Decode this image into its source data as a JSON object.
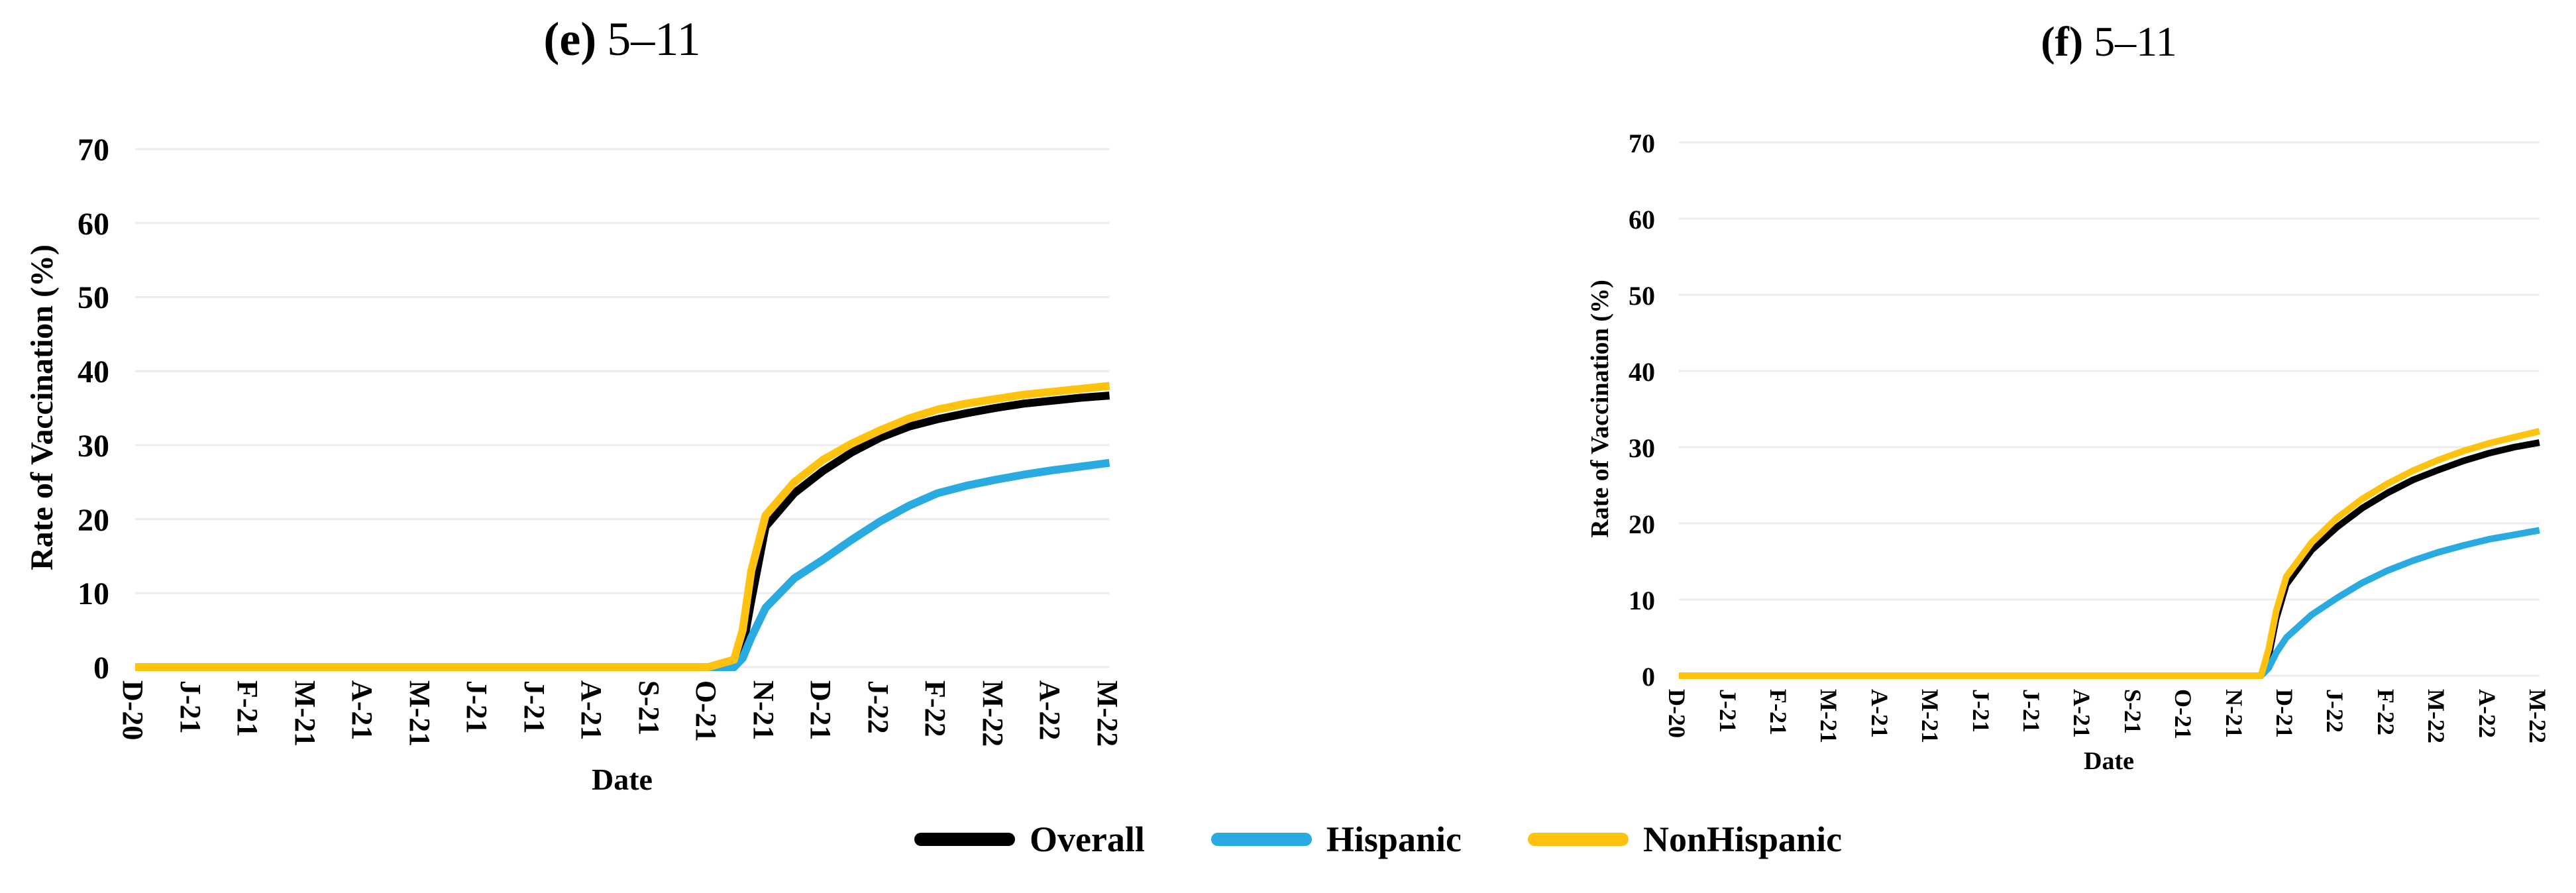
{
  "figure": {
    "background": "#FFFFFF",
    "gridline_color": "#ECECEC"
  },
  "legend": {
    "position": "bottom-center",
    "items": [
      {
        "label": "Overall",
        "color": "#000000"
      },
      {
        "label": "Hispanic",
        "color": "#29ABE2"
      },
      {
        "label": "NonHispanic",
        "color": "#FFC20E"
      }
    ]
  },
  "chart_data": [
    {
      "panel": "e",
      "type": "line",
      "title_prefix": "(e)",
      "title_main": "5–11",
      "xlabel": "Date",
      "ylabel": "Rate of Vaccination (%)",
      "ylim": [
        0,
        70
      ],
      "yticks": [
        0,
        10,
        20,
        30,
        40,
        50,
        60,
        70
      ],
      "grid": "horizontal",
      "legend_position": "shared-bottom",
      "categories": [
        "D-20",
        "J-21",
        "F-21",
        "M-21",
        "A-21",
        "M-21",
        "J-21",
        "J-21",
        "A-21",
        "S-21",
        "O-21",
        "N-21",
        "D-21",
        "J-22",
        "F-22",
        "M-22",
        "A-22",
        "M-22"
      ],
      "x_months": [
        0,
        1,
        2,
        3,
        4,
        5,
        6,
        7,
        8,
        9,
        10,
        10.45,
        10.6,
        10.75,
        11,
        11.5,
        12,
        12.5,
        13,
        13.5,
        14,
        14.5,
        15,
        15.5,
        16,
        16.5,
        17
      ],
      "series": [
        {
          "name": "Overall",
          "values": [
            0,
            0,
            0,
            0,
            0,
            0,
            0,
            0,
            0,
            0,
            0,
            0,
            2.5,
            9,
            19,
            23.5,
            26.5,
            29,
            31,
            32.5,
            33.5,
            34.3,
            35,
            35.6,
            36,
            36.4,
            36.7
          ]
        },
        {
          "name": "Hispanic",
          "values": [
            0,
            0,
            0,
            0,
            0,
            0,
            0,
            0,
            0,
            0,
            0,
            0,
            1.2,
            4,
            8,
            12,
            14.5,
            17.2,
            19.7,
            21.8,
            23.5,
            24.5,
            25.3,
            26,
            26.6,
            27.1,
            27.6
          ]
        },
        {
          "name": "NonHispanic",
          "values": [
            0,
            0,
            0,
            0,
            0,
            0,
            0,
            0,
            0,
            0,
            0,
            1,
            5,
            13,
            20.5,
            25,
            28,
            30.2,
            32,
            33.6,
            34.8,
            35.6,
            36.2,
            36.8,
            37.2,
            37.6,
            38
          ]
        }
      ]
    },
    {
      "panel": "f",
      "type": "line",
      "title_prefix": "(f)",
      "title_main": "5–11",
      "xlabel": "Date",
      "ylabel": "Rate of Vaccination (%)",
      "ylim": [
        0,
        70
      ],
      "yticks": [
        0,
        10,
        20,
        30,
        40,
        50,
        60,
        70
      ],
      "grid": "horizontal",
      "legend_position": "shared-bottom",
      "categories": [
        "D-20",
        "J-21",
        "F-21",
        "M-21",
        "A-21",
        "M-21",
        "J-21",
        "J-21",
        "A-21",
        "S-21",
        "O-21",
        "N-21",
        "D-21",
        "J-22",
        "F-22",
        "M-22",
        "A-22",
        "M-22"
      ],
      "x_months": [
        0,
        1,
        2,
        3,
        4,
        5,
        6,
        7,
        8,
        9,
        10,
        11,
        11.5,
        11.65,
        11.8,
        12,
        12.5,
        13,
        13.5,
        14,
        14.5,
        15,
        15.5,
        16,
        16.5,
        17
      ],
      "series": [
        {
          "name": "Overall",
          "values": [
            0,
            0,
            0,
            0,
            0,
            0,
            0,
            0,
            0,
            0,
            0,
            0,
            0,
            2.5,
            7.5,
            12,
            16.5,
            19.5,
            22,
            24,
            25.7,
            27,
            28.2,
            29.2,
            30,
            30.6
          ]
        },
        {
          "name": "Hispanic",
          "values": [
            0,
            0,
            0,
            0,
            0,
            0,
            0,
            0,
            0,
            0,
            0,
            0,
            0,
            1,
            3,
            5,
            8,
            10.2,
            12.2,
            13.8,
            15.1,
            16.2,
            17.1,
            17.9,
            18.5,
            19.1
          ]
        },
        {
          "name": "NonHispanic",
          "values": [
            0,
            0,
            0,
            0,
            0,
            0,
            0,
            0,
            0,
            0,
            0,
            0,
            0,
            3.5,
            8.5,
            13,
            17.5,
            20.7,
            23.2,
            25.2,
            26.9,
            28.3,
            29.5,
            30.5,
            31.3,
            32.1
          ]
        }
      ]
    }
  ]
}
